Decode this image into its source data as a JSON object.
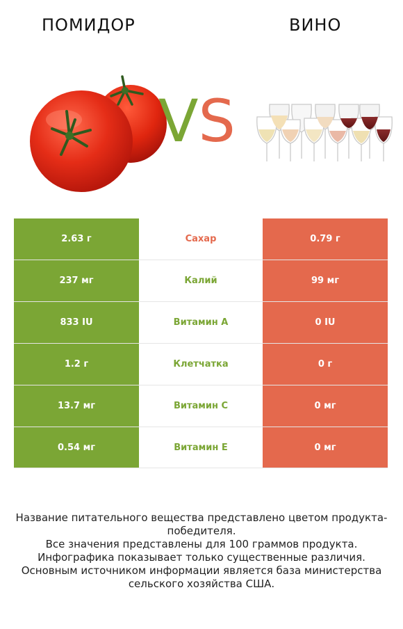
{
  "header": {
    "left_title": "ПОМИДОР",
    "right_title": "ВИНО"
  },
  "vs": {
    "v": "V",
    "s": "S"
  },
  "colors": {
    "left": "#7ba635",
    "right": "#e4694d"
  },
  "rows": [
    {
      "left": "2.63 г",
      "nutrient": "Сахар",
      "right": "0.79 г",
      "winner": "right"
    },
    {
      "left": "237 мг",
      "nutrient": "Калий",
      "right": "99 мг",
      "winner": "left"
    },
    {
      "left": "833 IU",
      "nutrient": "Витамин A",
      "right": "0 IU",
      "winner": "left"
    },
    {
      "left": "1.2 г",
      "nutrient": "Клетчатка",
      "right": "0 г",
      "winner": "left"
    },
    {
      "left": "13.7 мг",
      "nutrient": "Витамин C",
      "right": "0 мг",
      "winner": "left"
    },
    {
      "left": "0.54 мг",
      "nutrient": "Витамин E",
      "right": "0 мг",
      "winner": "left"
    }
  ],
  "footer": {
    "line1": "Название питательного вещества представлено цветом продукта-победителя.",
    "line2": "Все значения представлены для 100 граммов продукта.",
    "line3": "Инфографика показывает только существенные различия.",
    "line4": "Основным источником информации является база министерства сельского хозяйства США."
  }
}
